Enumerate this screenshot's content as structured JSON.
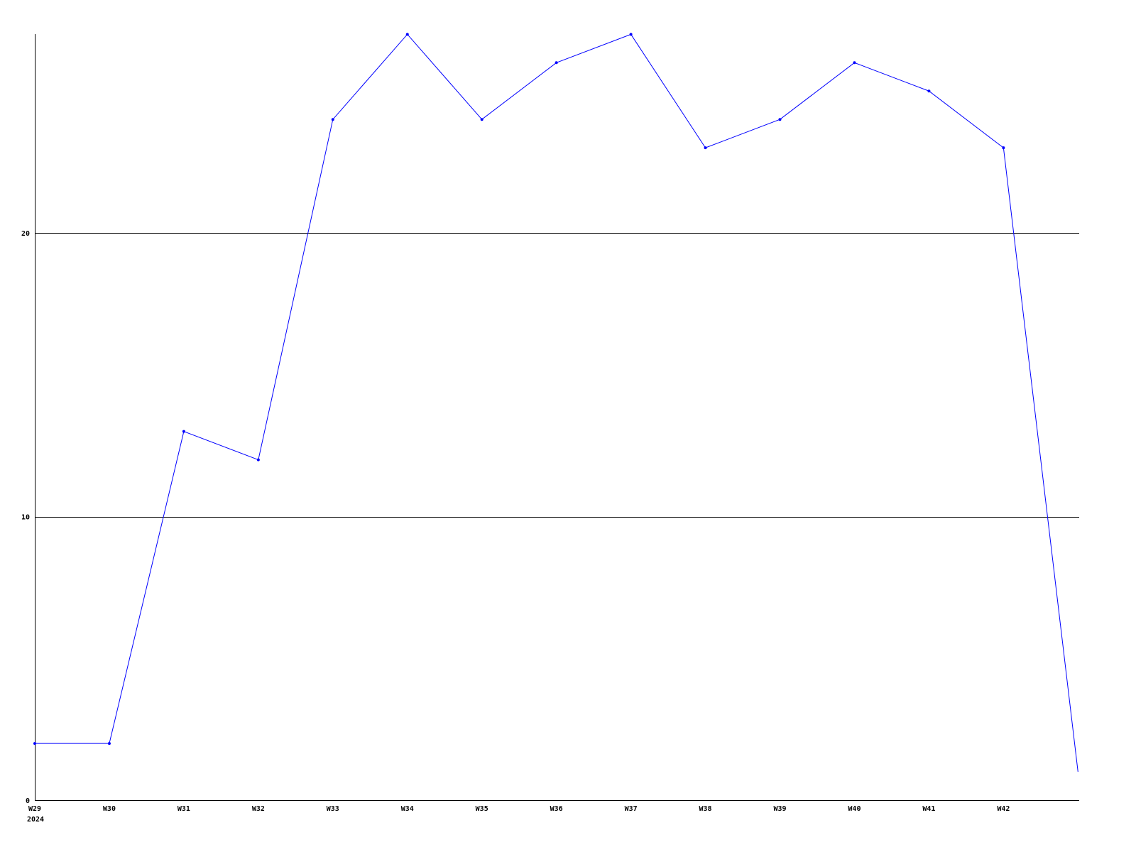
{
  "chart_data": {
    "type": "line",
    "title": "",
    "xlabel": "",
    "ylabel": "",
    "categories": [
      "W29",
      "W30",
      "W31",
      "W32",
      "W33",
      "W34",
      "W35",
      "W36",
      "W37",
      "W38",
      "W39",
      "W40",
      "W41",
      "W42",
      ""
    ],
    "year_label": "2024",
    "series": [
      {
        "values": [
          2,
          2,
          13,
          12,
          24,
          27,
          24,
          26,
          27,
          23,
          24,
          26,
          25,
          23,
          1
        ],
        "color": "#0000ff"
      }
    ],
    "ylim": [
      0,
      27
    ],
    "yticks": [
      0,
      10,
      20
    ],
    "ytick_labels": [
      "0",
      "10",
      "20"
    ],
    "grid": "horizontal",
    "markers_on_last_point": false
  }
}
